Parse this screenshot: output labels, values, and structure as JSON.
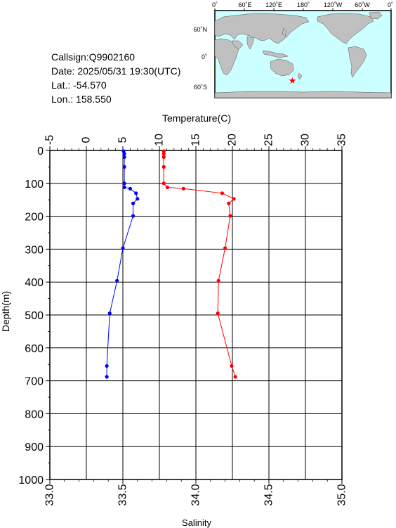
{
  "station": {
    "callsign_label": "Callsign:",
    "callsign": "Q9902160",
    "date_label": "Date:",
    "date": "2025/05/31 19:30(UTC)",
    "lat_label": "Lat.:",
    "lat": "-54.570",
    "lon_label": "Lon.:",
    "lon": "158.550"
  },
  "map": {
    "lon_labels": [
      "0˚",
      "60˚E",
      "120˚E",
      "180˚",
      "120˚W",
      "60˚W",
      "0˚"
    ],
    "lat_labels": [
      "60˚N",
      "0˚",
      "60˚S"
    ],
    "marker_lon": 158.55,
    "marker_lat": -54.57,
    "ocean_color": "#ccffff",
    "land_color": "#c0c0c0",
    "marker_color": "#ff0000"
  },
  "chart_data": {
    "type": "line",
    "ylabel": "Depth(m)",
    "y_ticks": [
      "0",
      "100",
      "200",
      "300",
      "400",
      "500",
      "600",
      "700",
      "800",
      "900",
      "1000"
    ],
    "ylim": [
      0,
      1000
    ],
    "y_inverted": true,
    "temperature_axis": {
      "label": "Temperature(C)",
      "ticks": [
        "-5",
        "0",
        "5",
        "10",
        "15",
        "20",
        "25",
        "30",
        "35"
      ],
      "range": [
        -5,
        35
      ],
      "position": "top"
    },
    "salinity_axis": {
      "label": "Salinity",
      "ticks": [
        "33.0",
        "33.5",
        "34.0",
        "34.5",
        "35.0"
      ],
      "range": [
        33.0,
        35.0
      ],
      "position": "bottom"
    },
    "grid": true,
    "series": [
      {
        "axis": "temperature",
        "color": "#ff0000",
        "points": [
          {
            "value": 10.6,
            "depth": 2
          },
          {
            "value": 10.6,
            "depth": 10
          },
          {
            "value": 10.6,
            "depth": 20
          },
          {
            "value": 10.6,
            "depth": 50
          },
          {
            "value": 10.6,
            "depth": 100
          },
          {
            "value": 11.1,
            "depth": 112
          },
          {
            "value": 13.3,
            "depth": 116
          },
          {
            "value": 18.6,
            "depth": 130
          },
          {
            "value": 20.2,
            "depth": 147
          },
          {
            "value": 19.5,
            "depth": 161
          },
          {
            "value": 19.7,
            "depth": 199
          },
          {
            "value": 19.0,
            "depth": 297
          },
          {
            "value": 18.1,
            "depth": 396
          },
          {
            "value": 18.0,
            "depth": 495
          },
          {
            "value": 19.9,
            "depth": 655
          },
          {
            "value": 20.4,
            "depth": 688
          }
        ]
      },
      {
        "axis": "salinity",
        "color": "#0000ff",
        "points": [
          {
            "value": 33.505,
            "depth": 2
          },
          {
            "value": 33.51,
            "depth": 10
          },
          {
            "value": 33.51,
            "depth": 20
          },
          {
            "value": 33.51,
            "depth": 50
          },
          {
            "value": 33.51,
            "depth": 100
          },
          {
            "value": 33.51,
            "depth": 112
          },
          {
            "value": 33.55,
            "depth": 116
          },
          {
            "value": 33.59,
            "depth": 130
          },
          {
            "value": 33.6,
            "depth": 147
          },
          {
            "value": 33.57,
            "depth": 161
          },
          {
            "value": 33.57,
            "depth": 199
          },
          {
            "value": 33.5,
            "depth": 297
          },
          {
            "value": 33.46,
            "depth": 396
          },
          {
            "value": 33.41,
            "depth": 495
          },
          {
            "value": 33.39,
            "depth": 655
          },
          {
            "value": 33.39,
            "depth": 688
          }
        ]
      }
    ]
  }
}
